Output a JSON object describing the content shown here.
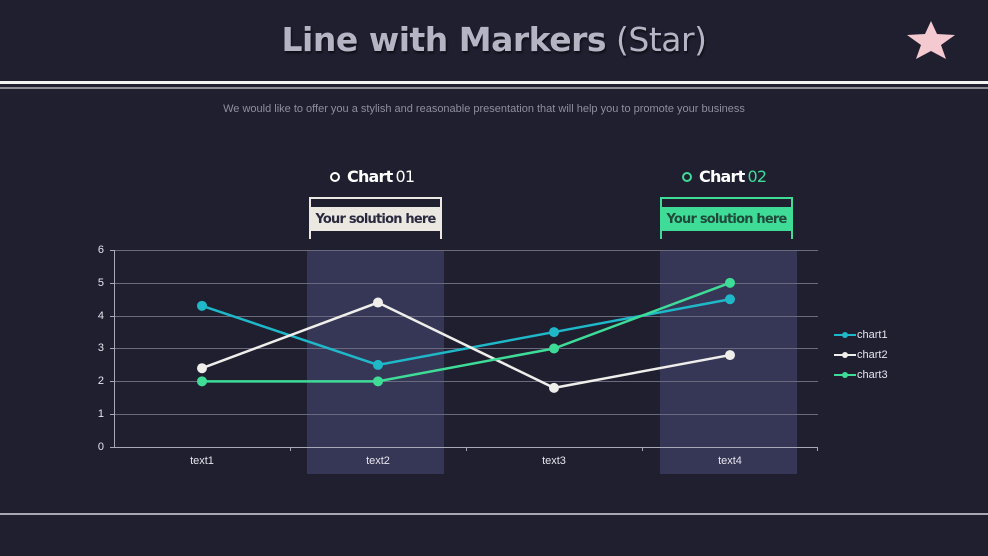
{
  "header": {
    "title_bold": "Line with Markers",
    "title_light": "(Star)",
    "subtitle": "We would like to offer you a stylish and reasonable presentation that will help you to promote your business",
    "star_icon": "star-icon",
    "star_color": "#f5c9d0"
  },
  "highlights": [
    {
      "label": "Chart",
      "number": "01",
      "box_text": "Your solution here",
      "accent": "#ebe8e2",
      "text_color": "#2a2a3e"
    },
    {
      "label": "Chart",
      "number": "02",
      "box_text": "Your solution here",
      "accent": "#3fdc98",
      "text_color": "#1f4a3a"
    }
  ],
  "colors": {
    "background": "#1f1f30",
    "band": "#363656",
    "chart1": "#1fb8c8",
    "chart2": "#f0eeea",
    "chart3": "#3fdc98"
  },
  "chart_data": {
    "type": "line",
    "title": "Line with Markers (Star)",
    "categories": [
      "text1",
      "text2",
      "text3",
      "text4"
    ],
    "series": [
      {
        "name": "chart1",
        "values": [
          4.3,
          2.5,
          3.5,
          4.5
        ]
      },
      {
        "name": "chart2",
        "values": [
          2.4,
          4.4,
          1.8,
          2.8
        ]
      },
      {
        "name": "chart3",
        "values": [
          2.0,
          2.0,
          3.0,
          5.0
        ]
      }
    ],
    "xlabel": "",
    "ylabel": "",
    "ylim": [
      0,
      6
    ],
    "yticks": [
      "0",
      "1",
      "2",
      "3",
      "4",
      "5",
      "6"
    ],
    "grid": true,
    "legend_position": "right",
    "highlighted_categories": [
      "text2",
      "text4"
    ]
  }
}
